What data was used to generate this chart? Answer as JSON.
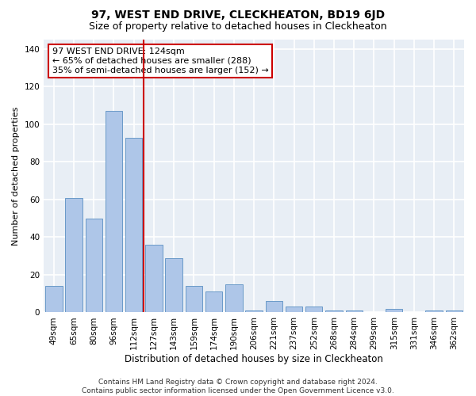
{
  "title": "97, WEST END DRIVE, CLECKHEATON, BD19 6JD",
  "subtitle": "Size of property relative to detached houses in Cleckheaton",
  "xlabel": "Distribution of detached houses by size in Cleckheaton",
  "ylabel": "Number of detached properties",
  "categories": [
    "49sqm",
    "65sqm",
    "80sqm",
    "96sqm",
    "112sqm",
    "127sqm",
    "143sqm",
    "159sqm",
    "174sqm",
    "190sqm",
    "206sqm",
    "221sqm",
    "237sqm",
    "252sqm",
    "268sqm",
    "284sqm",
    "299sqm",
    "315sqm",
    "331sqm",
    "346sqm",
    "362sqm"
  ],
  "values": [
    14,
    61,
    50,
    107,
    93,
    36,
    29,
    14,
    11,
    15,
    1,
    6,
    3,
    3,
    1,
    1,
    0,
    2,
    0,
    1,
    1
  ],
  "bar_color": "#aec6e8",
  "bar_edge_color": "#5a8fc2",
  "vline_x_index": 5,
  "vline_color": "#cc0000",
  "annotation_text": "97 WEST END DRIVE: 124sqm\n← 65% of detached houses are smaller (288)\n35% of semi-detached houses are larger (152) →",
  "annotation_box_color": "white",
  "annotation_box_edge": "#cc0000",
  "ylim": [
    0,
    145
  ],
  "yticks": [
    0,
    20,
    40,
    60,
    80,
    100,
    120,
    140
  ],
  "background_color": "#e8eef5",
  "grid_color": "white",
  "footer": "Contains HM Land Registry data © Crown copyright and database right 2024.\nContains public sector information licensed under the Open Government Licence v3.0.",
  "title_fontsize": 10,
  "subtitle_fontsize": 9,
  "xlabel_fontsize": 8.5,
  "ylabel_fontsize": 8,
  "tick_fontsize": 7.5,
  "annotation_fontsize": 8,
  "footer_fontsize": 6.5
}
